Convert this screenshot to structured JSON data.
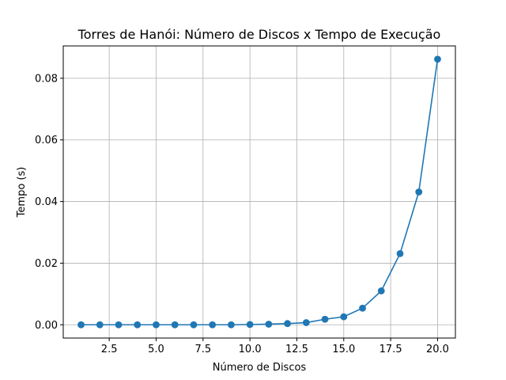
{
  "chart_data": {
    "type": "line",
    "title": "Torres de Hanói: Número de Discos x Tempo de Execução",
    "xlabel": "Número de Discos",
    "ylabel": "Tempo (s)",
    "xlim": [
      0.05,
      20.95
    ],
    "ylim": [
      -0.0043,
      0.0905
    ],
    "xticks": [
      2.5,
      5.0,
      7.5,
      10.0,
      12.5,
      15.0,
      17.5,
      20.0
    ],
    "xtick_labels": [
      "2.5",
      "5.0",
      "7.5",
      "10.0",
      "12.5",
      "15.0",
      "17.5",
      "20.0"
    ],
    "yticks": [
      0.0,
      0.02,
      0.04,
      0.06,
      0.08
    ],
    "ytick_labels": [
      "0.00",
      "0.02",
      "0.04",
      "0.06",
      "0.08"
    ],
    "grid": true,
    "color": "#1f77b4",
    "marker": "circle",
    "series": [
      {
        "x": [
          1,
          2,
          3,
          4,
          5,
          6,
          7,
          8,
          9,
          10,
          11,
          12,
          13,
          14,
          15,
          16,
          17,
          18,
          19,
          20
        ],
        "values": [
          0.0,
          0.0,
          0.0,
          0.0,
          0.0,
          0.0,
          0.0,
          0.0,
          0.0,
          0.0001,
          0.0002,
          0.0004,
          0.0007,
          0.0018,
          0.0026,
          0.0054,
          0.011,
          0.0231,
          0.0431,
          0.0862
        ]
      }
    ]
  }
}
